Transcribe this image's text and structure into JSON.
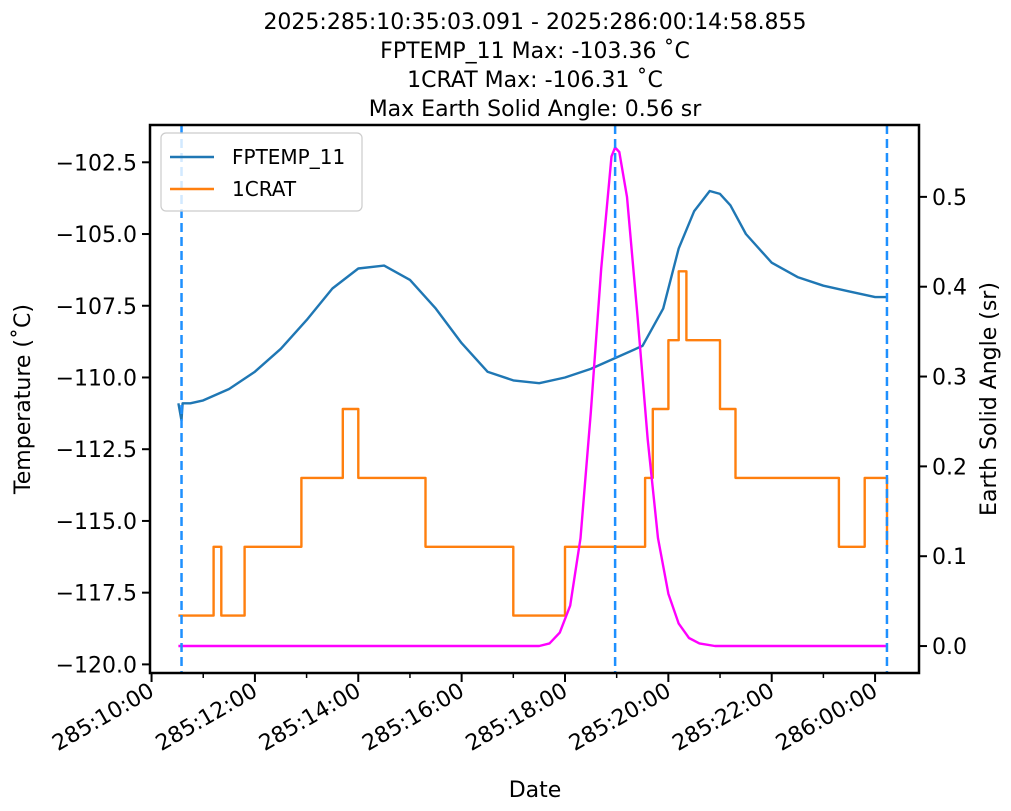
{
  "chart_data": {
    "type": "line",
    "title_lines": [
      "2025:285:10:35:03.091 - 2025:286:00:14:58.855",
      "FPTEMP_11 Max: -103.36 ˚C",
      "1CRAT Max: -106.31 ˚C",
      "Max Earth Solid Angle: 0.56 sr"
    ],
    "xlabel": "Date",
    "ylabel": "Temperature (˚C)",
    "y2label": "Earth Solid Angle (sr)",
    "x_ticks": [
      "285:10:00",
      "285:12:00",
      "285:14:00",
      "285:16:00",
      "285:18:00",
      "285:20:00",
      "285:22:00",
      "286:00:00"
    ],
    "x_tick_hours": [
      10,
      12,
      14,
      16,
      18,
      20,
      22,
      24
    ],
    "xlim_hours": [
      9.97,
      24.85
    ],
    "ylim": [
      -120.3,
      -101.2
    ],
    "y_ticks": [
      -120.0,
      -117.5,
      -115.0,
      -112.5,
      -110.0,
      -107.5,
      -105.0,
      -102.5
    ],
    "y_tick_labels": [
      "−120.0",
      "−117.5",
      "−115.0",
      "−112.5",
      "−110.0",
      "−107.5",
      "−105.0",
      "−102.5"
    ],
    "y2lim": [
      -0.03,
      0.58
    ],
    "y2_ticks": [
      0.0,
      0.1,
      0.2,
      0.3,
      0.4,
      0.5
    ],
    "y2_tick_labels": [
      "0.0",
      "0.1",
      "0.2",
      "0.3",
      "0.4",
      "0.5"
    ],
    "legend": {
      "placement": "upper-left",
      "entries": [
        "FPTEMP_11",
        "1CRAT"
      ]
    },
    "vlines_hours": [
      10.58,
      18.97,
      24.23
    ],
    "series": [
      {
        "name": "FPTEMP_11",
        "color": "#1f77b4",
        "axis": "left",
        "x": [
          10.52,
          10.58,
          10.6,
          10.75,
          11.0,
          11.5,
          12.0,
          12.5,
          13.0,
          13.5,
          14.0,
          14.5,
          15.0,
          15.5,
          16.0,
          16.5,
          17.0,
          17.5,
          18.0,
          18.5,
          19.0,
          19.5,
          19.9,
          20.2,
          20.5,
          20.8,
          21.0,
          21.2,
          21.5,
          22.0,
          22.5,
          23.0,
          23.5,
          24.0,
          24.23
        ],
        "y": [
          -110.9,
          -111.5,
          -110.9,
          -110.9,
          -110.8,
          -110.4,
          -109.8,
          -109.0,
          -108.0,
          -106.9,
          -106.2,
          -106.1,
          -106.6,
          -107.6,
          -108.8,
          -109.8,
          -110.1,
          -110.2,
          -110.0,
          -109.7,
          -109.3,
          -108.9,
          -107.6,
          -105.5,
          -104.2,
          -103.5,
          -103.6,
          -104.0,
          -105.0,
          -106.0,
          -106.5,
          -106.8,
          -107.0,
          -107.2,
          -107.2
        ]
      },
      {
        "name": "1CRAT",
        "color": "#ff7f0e",
        "axis": "left",
        "step": true,
        "x": [
          10.52,
          11.2,
          11.35,
          11.8,
          12.5,
          12.9,
          13.3,
          13.7,
          14.0,
          15.0,
          15.3,
          15.9,
          17.0,
          18.0,
          18.9,
          19.3,
          19.55,
          19.7,
          20.0,
          20.2,
          20.35,
          20.7,
          21.0,
          21.3,
          22.5,
          23.3,
          23.8,
          24.23
        ],
        "y": [
          -118.3,
          -115.9,
          -118.3,
          -115.9,
          -115.9,
          -113.5,
          -113.5,
          -111.1,
          -113.5,
          -113.5,
          -115.9,
          -115.9,
          -118.3,
          -115.9,
          -115.9,
          -115.9,
          -113.5,
          -111.1,
          -108.7,
          -106.3,
          -108.7,
          -108.7,
          -111.1,
          -113.5,
          -113.5,
          -115.9,
          -113.5,
          -115.9
        ]
      },
      {
        "name": "Earth Solid Angle",
        "color": "#ff00ff",
        "axis": "right",
        "x": [
          10.52,
          17.0,
          17.5,
          17.7,
          17.9,
          18.1,
          18.3,
          18.5,
          18.7,
          18.9,
          18.97,
          19.05,
          19.2,
          19.4,
          19.6,
          19.8,
          20.0,
          20.2,
          20.4,
          20.6,
          20.9,
          21.2,
          24.23
        ],
        "y": [
          0.0,
          0.0,
          0.0,
          0.003,
          0.015,
          0.045,
          0.12,
          0.26,
          0.42,
          0.545,
          0.555,
          0.55,
          0.5,
          0.37,
          0.23,
          0.12,
          0.058,
          0.025,
          0.009,
          0.003,
          0.0,
          0.0,
          0.0
        ]
      }
    ]
  }
}
